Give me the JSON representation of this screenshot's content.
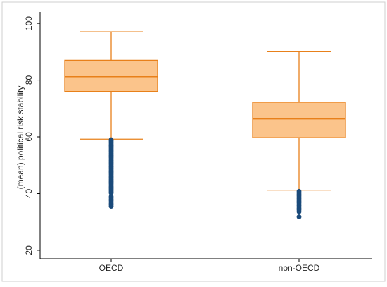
{
  "chart_data": {
    "type": "box",
    "title": "",
    "xlabel": "",
    "ylabel": "(mean) political risk stability",
    "ylim": [
      17,
      104
    ],
    "yticks": [
      20,
      40,
      60,
      80,
      100
    ],
    "grid": false,
    "categories": [
      "OECD",
      "non-OECD"
    ],
    "boxes": [
      {
        "category": "OECD",
        "lower_whisker": 59.2,
        "q1": 76,
        "median": 81.2,
        "q3": 87,
        "upper_whisker": 97,
        "outliers": [
          59,
          58.6,
          58.2,
          57.8,
          57.4,
          57,
          56.6,
          56.2,
          55.8,
          55.4,
          55,
          54.6,
          54.2,
          53.8,
          53.4,
          53,
          52.6,
          52.2,
          51.8,
          51.4,
          51,
          50.6,
          50.2,
          49.8,
          49.4,
          49,
          48.6,
          48.2,
          47.8,
          47.4,
          47,
          46.6,
          46.2,
          45.8,
          45.4,
          45,
          44.6,
          44.2,
          43.8,
          43.4,
          43,
          42.6,
          42.2,
          41.8,
          41.4,
          41,
          40.6,
          40.2,
          39,
          38.5,
          38,
          37.5,
          37,
          36.5,
          36,
          35.5
        ]
      },
      {
        "category": "non-OECD",
        "lower_whisker": 41.2,
        "q1": 59.7,
        "median": 66.3,
        "q3": 72.2,
        "upper_whisker": 90,
        "outliers": [
          40.8,
          40.3,
          39.8,
          39.3,
          38.8,
          38.3,
          37.8,
          37.3,
          36.8,
          36.3,
          35.8,
          35.3,
          34.8,
          34.2,
          33.6,
          31.8
        ]
      }
    ],
    "colors": {
      "box_fill": "#fbc48b",
      "box_stroke": "#e8801a",
      "outlier": "#1a4a7a",
      "axis": "#000000"
    }
  }
}
